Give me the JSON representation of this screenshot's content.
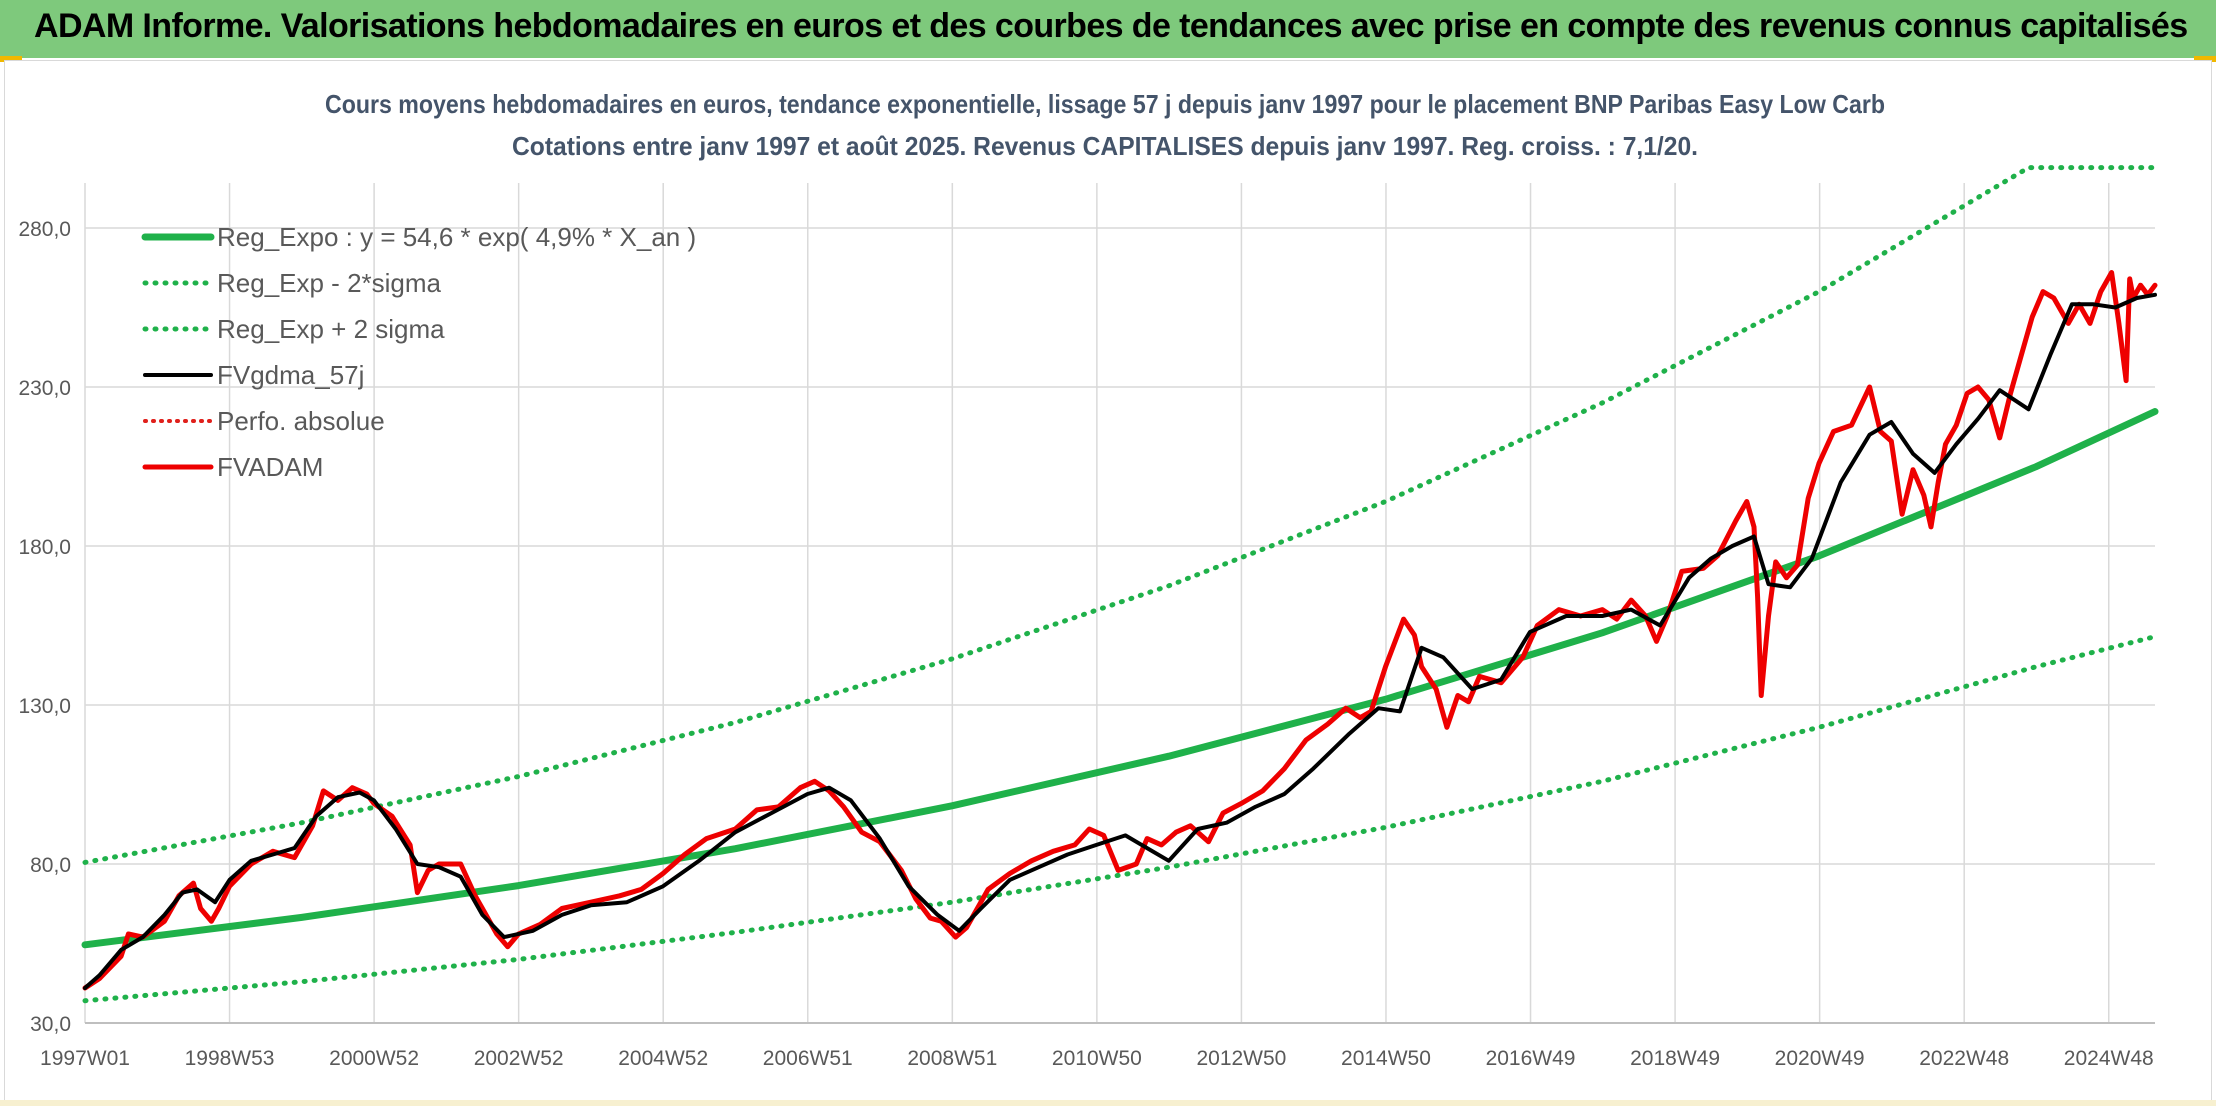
{
  "header": {
    "title": "ADAM Informe. Valorisations hebdomadaires en euros et des courbes de tendances avec prise en compte des revenus connus capitalisés"
  },
  "colors": {
    "banner": "#7ec97c",
    "trend": "#1fb14a",
    "band": "#1fb14a",
    "smooth": "#000000",
    "perf": "#e0201b",
    "price": "#ee0000",
    "grid": "#d9d9d9",
    "axis_text": "#595959",
    "title_text": "#44546a"
  },
  "chart_data": {
    "type": "line",
    "title": "Cours moyens hebdomadaires en euros, tendance exponentielle, lissage 57 j depuis janv 1997 pour le placement BNP Paribas Easy Low Carb",
    "subtitle": "Cotations entre janv 1997 et août 2025. Revenus CAPITALISES depuis janv 1997. Reg. croiss. : 7,1/20.",
    "xlabel": "",
    "ylabel": "",
    "x_ticks": [
      "1997W01",
      "1998W53",
      "2000W52",
      "2002W52",
      "2004W52",
      "2006W51",
      "2008W51",
      "2010W50",
      "2012W50",
      "2014W50",
      "2016W49",
      "2018W49",
      "2020W49",
      "2022W48",
      "2024W48"
    ],
    "x_range": [
      1997.0,
      2025.65
    ],
    "y_ticks": [
      "30,0",
      "80,0",
      "130,0",
      "180,0",
      "230,0",
      "280,0"
    ],
    "ylim": [
      30,
      280
    ],
    "grid": true,
    "legend_position": "top-left",
    "series": [
      {
        "name": "Reg_Expo : y = 54,6 * exp( 4,9% *  X_an )",
        "style": "solid-thick",
        "formula": {
          "a": 54.6,
          "r": 0.049
        },
        "x": [
          1997.0,
          2000.0,
          2003.0,
          2006.0,
          2009.0,
          2012.0,
          2015.0,
          2018.0,
          2021.0,
          2024.0,
          2025.65
        ],
        "values": [
          54.6,
          63.2,
          73.2,
          84.8,
          98.3,
          113.9,
          131.8,
          152.7,
          176.9,
          204.9,
          222.3
        ]
      },
      {
        "name": "Reg_Exp - 2*sigma",
        "style": "dotted",
        "x": [
          1997.0,
          2000.0,
          2003.0,
          2006.0,
          2009.0,
          2012.0,
          2015.0,
          2018.0,
          2021.0,
          2024.0,
          2025.65
        ],
        "values": [
          37.0,
          43.0,
          50.0,
          58.5,
          68.0,
          79.0,
          91.5,
          106.0,
          123.0,
          142.0,
          151.5
        ]
      },
      {
        "name": "Reg_Exp + 2 sigma",
        "style": "dotted",
        "x": [
          1997.0,
          2000.0,
          2003.0,
          2006.0,
          2009.0,
          2012.0,
          2015.0,
          2018.0,
          2021.0,
          2023.9,
          2025.65
        ],
        "values": [
          80.5,
          93.0,
          107.5,
          124.5,
          144.5,
          167.5,
          194.0,
          225.0,
          260.0,
          299.0,
          299.0
        ]
      },
      {
        "name": "FVgdma_57j",
        "style": "solid",
        "x": [
          1997.0,
          1997.2,
          1997.5,
          1997.8,
          1998.1,
          1998.35,
          1998.55,
          1998.8,
          1999.0,
          1999.3,
          1999.6,
          1999.9,
          2000.2,
          2000.5,
          2000.8,
          2001.0,
          2001.3,
          2001.6,
          2001.9,
          2002.2,
          2002.5,
          2002.8,
          2003.2,
          2003.6,
          2004.0,
          2004.5,
          2005.0,
          2005.5,
          2006.0,
          2006.5,
          2007.0,
          2007.3,
          2007.6,
          2008.0,
          2008.4,
          2008.8,
          2009.1,
          2009.4,
          2009.8,
          2010.2,
          2010.6,
          2011.0,
          2011.4,
          2011.7,
          2012.0,
          2012.4,
          2012.8,
          2013.2,
          2013.6,
          2014.0,
          2014.5,
          2014.9,
          2015.2,
          2015.5,
          2015.8,
          2016.2,
          2016.6,
          2017.0,
          2017.5,
          2018.0,
          2018.4,
          2018.8,
          2019.2,
          2019.5,
          2019.8,
          2020.1,
          2020.3,
          2020.6,
          2020.9,
          2021.3,
          2021.7,
          2022.0,
          2022.3,
          2022.6,
          2022.9,
          2023.2,
          2023.5,
          2023.9,
          2024.2,
          2024.5,
          2024.8,
          2025.1,
          2025.4,
          2025.65
        ],
        "values": [
          41.0,
          45.0,
          53.0,
          57.0,
          64.0,
          71.0,
          72.0,
          68.0,
          75.0,
          81.0,
          83.0,
          85.0,
          95.0,
          101.0,
          102.5,
          100.0,
          91.0,
          80.0,
          79.0,
          76.0,
          64.0,
          57.0,
          59.0,
          64.0,
          67.0,
          68.0,
          73.0,
          81.0,
          90.0,
          96.0,
          102.0,
          104.0,
          100.0,
          88.0,
          73.0,
          64.0,
          59.0,
          66.0,
          75.0,
          79.0,
          83.0,
          86.0,
          89.0,
          85.0,
          81.0,
          91.0,
          93.0,
          98.0,
          102.0,
          110.0,
          121.0,
          129.0,
          128.0,
          148.0,
          145.0,
          135.0,
          138.0,
          153.0,
          158.0,
          158.0,
          160.0,
          155.0,
          170.0,
          176.0,
          180.0,
          183.0,
          168.0,
          167.0,
          176.0,
          200.0,
          215.0,
          219.0,
          209.0,
          203.0,
          212.0,
          220.0,
          229.0,
          223.0,
          240.0,
          256.0,
          256.0,
          255.0,
          258.0,
          259.0
        ]
      },
      {
        "name": "Perfo. absolue",
        "style": "dotted",
        "x": [],
        "values": []
      },
      {
        "name": "FVADAM",
        "style": "solid-thick",
        "x": [
          1997.0,
          1997.2,
          1997.5,
          1997.6,
          1997.8,
          1998.1,
          1998.3,
          1998.5,
          1998.6,
          1998.75,
          1998.85,
          1999.0,
          1999.3,
          1999.6,
          1999.9,
          2000.15,
          2000.3,
          2000.5,
          2000.7,
          2000.9,
          2001.0,
          2001.25,
          2001.5,
          2001.6,
          2001.75,
          2001.9,
          2002.2,
          2002.4,
          2002.5,
          2002.7,
          2002.85,
          2003.0,
          2003.3,
          2003.6,
          2004.0,
          2004.4,
          2004.7,
          2005.0,
          2005.3,
          2005.6,
          2006.0,
          2006.3,
          2006.6,
          2006.9,
          2007.1,
          2007.3,
          2007.5,
          2007.75,
          2008.0,
          2008.3,
          2008.5,
          2008.7,
          2008.85,
          2009.05,
          2009.2,
          2009.5,
          2009.8,
          2010.1,
          2010.4,
          2010.7,
          2010.9,
          2011.1,
          2011.3,
          2011.55,
          2011.7,
          2011.9,
          2012.1,
          2012.3,
          2012.55,
          2012.75,
          2013.0,
          2013.3,
          2013.6,
          2013.9,
          2014.2,
          2014.45,
          2014.65,
          2014.8,
          2015.0,
          2015.25,
          2015.4,
          2015.5,
          2015.7,
          2015.85,
          2016.0,
          2016.15,
          2016.3,
          2016.6,
          2016.9,
          2017.1,
          2017.4,
          2017.7,
          2018.0,
          2018.2,
          2018.4,
          2018.6,
          2018.75,
          2018.9,
          2019.1,
          2019.4,
          2019.6,
          2019.85,
          2020.0,
          2020.1,
          2020.15,
          2020.2,
          2020.3,
          2020.4,
          2020.55,
          2020.7,
          2020.85,
          2021.0,
          2021.2,
          2021.45,
          2021.7,
          2021.85,
          2022.0,
          2022.15,
          2022.3,
          2022.45,
          2022.55,
          2022.65,
          2022.75,
          2022.9,
          2023.05,
          2023.2,
          2023.35,
          2023.5,
          2023.65,
          2023.8,
          2023.95,
          2024.1,
          2024.25,
          2024.45,
          2024.6,
          2024.75,
          2024.9,
          2025.05,
          2025.15,
          2025.25,
          2025.3,
          2025.35,
          2025.45,
          2025.55,
          2025.65
        ],
        "values": [
          41.0,
          44.0,
          51.0,
          58.0,
          57.0,
          62.0,
          70.0,
          74.0,
          66.0,
          62.0,
          66.0,
          73.0,
          80.0,
          84.0,
          82.0,
          92.0,
          103.0,
          100.0,
          104.0,
          102.0,
          99.0,
          95.0,
          86.0,
          71.0,
          78.0,
          80.0,
          80.0,
          70.0,
          66.0,
          58.0,
          54.0,
          58.0,
          61.0,
          66.0,
          68.0,
          70.0,
          72.0,
          77.0,
          83.0,
          88.0,
          91.0,
          97.0,
          98.0,
          104.0,
          106.0,
          103.0,
          98.0,
          90.0,
          87.0,
          78.0,
          69.0,
          63.0,
          62.0,
          57.0,
          60.0,
          72.0,
          77.0,
          81.0,
          84.0,
          86.0,
          91.0,
          89.0,
          78.0,
          80.0,
          88.0,
          86.0,
          90.0,
          92.0,
          87.0,
          96.0,
          99.0,
          103.0,
          110.0,
          119.0,
          124.0,
          129.0,
          126.0,
          128.0,
          142.0,
          157.0,
          152.0,
          142.0,
          135.0,
          123.0,
          133.0,
          131.0,
          139.0,
          137.0,
          145.0,
          155.0,
          160.0,
          158.0,
          160.0,
          157.0,
          163.0,
          158.0,
          150.0,
          158.0,
          172.0,
          173.0,
          177.0,
          188.0,
          194.0,
          186.0,
          164.0,
          133.0,
          158.0,
          175.0,
          170.0,
          174.0,
          195.0,
          206.0,
          216.0,
          218.0,
          230.0,
          216.0,
          213.0,
          190.0,
          204.0,
          196.0,
          186.0,
          200.0,
          212.0,
          218.0,
          228.0,
          230.0,
          226.0,
          214.0,
          228.0,
          240.0,
          252.0,
          260.0,
          258.0,
          250.0,
          256.0,
          250.0,
          260.0,
          266.0,
          250.0,
          232.0,
          264.0,
          258.0,
          262.0,
          259.0,
          262.0
        ]
      }
    ]
  }
}
